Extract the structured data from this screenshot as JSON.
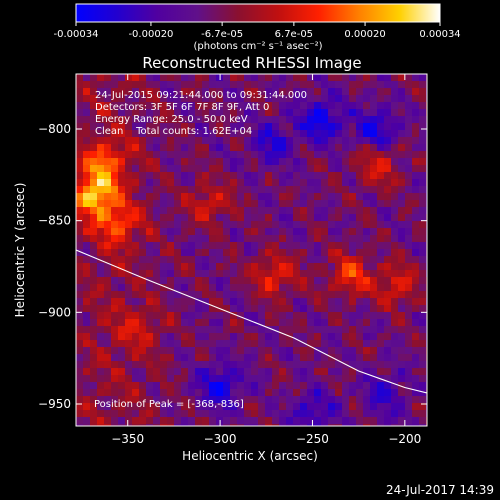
{
  "colorbar": {
    "ticks": [
      "-0.00034",
      "-0.00020",
      "-6.7e-05",
      "6.7e-05",
      "0.00020",
      "0.00034"
    ],
    "tick_values": [
      -0.00034,
      -0.0002,
      -6.7e-05,
      6.7e-05,
      0.0002,
      0.00034
    ],
    "range": [
      -0.00034,
      0.00034
    ],
    "units_label": "(photons cm⁻² s⁻¹ asec⁻²)"
  },
  "chart_data": {
    "type": "heatmap",
    "title": "Reconstructed RHESSI Image",
    "xlabel": "Heliocentric X (arcsec)",
    "ylabel": "Heliocentric Y (arcsec)",
    "xlim": [
      -378,
      -188
    ],
    "ylim": [
      -962,
      -770
    ],
    "xticks": [
      -350,
      -300,
      -250,
      -200
    ],
    "xtick_labels": [
      "−350",
      "−300",
      "−250",
      "−200"
    ],
    "yticks": [
      -800,
      -850,
      -900,
      -950
    ],
    "ytick_labels": [
      "−800",
      "−850",
      "−900",
      "−950"
    ],
    "info_lines": [
      "24-Jul-2015 09:21:44.000 to 09:31:44.000",
      "Detectors: 3F 5F 6F 7F 8F 9F, Att 0",
      "Energy Range: 25.0 - 50.0 keV",
      "Clean    Total counts: 1.62E+04"
    ],
    "peak_label": "Position of Peak = [-368,-836]",
    "peak": [
      -368,
      -836
    ],
    "limb_curve": [
      [
        -378,
        -866
      ],
      [
        -340,
        -882
      ],
      [
        -300,
        -898
      ],
      [
        -260,
        -914
      ],
      [
        -225,
        -932
      ],
      [
        -200,
        -941
      ],
      [
        -188,
        -944
      ]
    ],
    "bright_spots": [
      {
        "x": -368,
        "y": -836,
        "intensity": 1.0
      },
      {
        "x": -362,
        "y": -818,
        "intensity": 0.62
      },
      {
        "x": -355,
        "y": -852,
        "intensity": 0.55
      },
      {
        "x": -305,
        "y": -840,
        "intensity": 0.5
      },
      {
        "x": -270,
        "y": -880,
        "intensity": 0.6
      },
      {
        "x": -230,
        "y": -880,
        "intensity": 0.62
      },
      {
        "x": -205,
        "y": -885,
        "intensity": 0.55
      },
      {
        "x": -215,
        "y": -820,
        "intensity": 0.52
      },
      {
        "x": -345,
        "y": -910,
        "intensity": 0.35
      }
    ],
    "dim_spots": [
      {
        "x": -245,
        "y": -795,
        "intensity": -0.7
      },
      {
        "x": -215,
        "y": -800,
        "intensity": -0.6
      },
      {
        "x": -272,
        "y": -808,
        "intensity": -0.5
      },
      {
        "x": -300,
        "y": -940,
        "intensity": -0.65
      },
      {
        "x": -250,
        "y": -955,
        "intensity": -0.5
      },
      {
        "x": -210,
        "y": -945,
        "intensity": -0.45
      }
    ]
  },
  "timestamp": "24-Jul-2017 14:39",
  "colors": {
    "background": "#000000",
    "foreground": "#ffffff",
    "colormap": [
      "#0000ff",
      "#2200d0",
      "#5000a0",
      "#60108a",
      "#8a1030",
      "#c01010",
      "#ff2000",
      "#ff8000",
      "#ffd000",
      "#ffffff"
    ]
  }
}
